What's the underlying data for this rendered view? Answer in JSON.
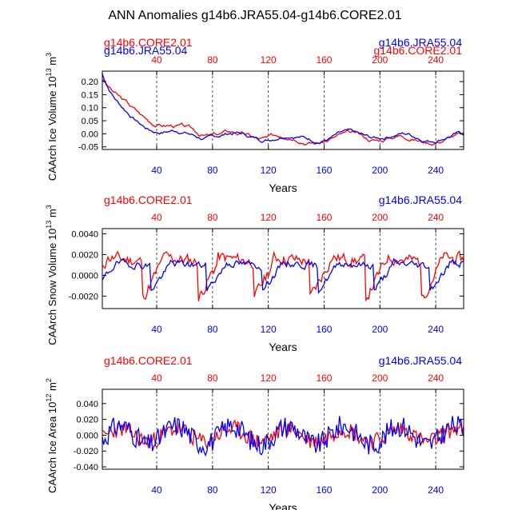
{
  "title": "ANN Anomalies g14b6.JRA55.04-g14b6.CORE2.01",
  "colors": {
    "core": "#ff0000",
    "jra": "#0000ff",
    "axis": "#000000",
    "grid": "#000000"
  },
  "chart_data": [
    {
      "type": "line",
      "panel": "ice-volume",
      "ylabel_main": "CAArch Ice Volume 10",
      "ylabel_exp": "13",
      "ylabel_unit": " m",
      "ylabel_unit_exp": "3",
      "xlabel": "Years",
      "legend_left": "g14b6.CORE2.01",
      "legend_right": "g14b6.JRA55.04",
      "legend_left_overprint": "g14b6.JRA55.04",
      "legend_right_overprint": "g14b6.CORE2.01",
      "xlim": [
        1,
        260
      ],
      "ylim": [
        -0.06,
        0.24
      ],
      "xticks": [
        40,
        80,
        120,
        160,
        200,
        240
      ],
      "xtick_labels": [
        "40",
        "80",
        "120",
        "160",
        "200",
        "240"
      ],
      "yticks": [
        0.2,
        0.15,
        0.1,
        0.05,
        0.0,
        -0.05
      ],
      "ytick_labels": [
        "0.20",
        "0.15",
        "0.10",
        "0.05",
        "0.00",
        "-0.05"
      ],
      "grid_x": true,
      "series": [
        {
          "name": "g14b6.CORE2.01",
          "color": "#ff0000",
          "kind": "ice",
          "amp": 0.012,
          "start": 0.21,
          "mean": -0.015,
          "decay": 30,
          "seed": 3
        },
        {
          "name": "g14b6.JRA55.04",
          "color": "#0000ff",
          "kind": "ice",
          "amp": 0.01,
          "start": 0.23,
          "mean": -0.01,
          "decay": 18,
          "seed": 7
        }
      ]
    },
    {
      "type": "line",
      "panel": "snow-volume",
      "ylabel_main": "CAArch Snow Volume 10",
      "ylabel_exp": "13",
      "ylabel_unit": " m",
      "ylabel_unit_exp": "3",
      "xlabel": "Years",
      "legend_left": "g14b6.CORE2.01",
      "legend_right": "g14b6.JRA55.04",
      "xlim": [
        1,
        260
      ],
      "ylim": [
        -0.0032,
        0.0045
      ],
      "xticks": [
        40,
        80,
        120,
        160,
        200,
        240
      ],
      "xtick_labels": [
        "40",
        "80",
        "120",
        "160",
        "200",
        "240"
      ],
      "yticks": [
        0.004,
        0.002,
        0.0,
        -0.002
      ],
      "ytick_labels": [
        "0.0040",
        "0.0020",
        "0.0000",
        "-0.0020"
      ],
      "grid_x": true,
      "series": [
        {
          "name": "g14b6.CORE2.01",
          "color": "#ff0000",
          "kind": "cycle",
          "amp": 0.0026,
          "period": 40,
          "phase": 0.25,
          "noise": 0.0005,
          "seed": 11
        },
        {
          "name": "g14b6.JRA55.04",
          "color": "#0000ff",
          "kind": "cycle",
          "amp": 0.0018,
          "period": 40,
          "phase": 0.12,
          "noise": 0.0003,
          "seed": 19
        }
      ]
    },
    {
      "type": "line",
      "panel": "ice-area",
      "ylabel_main": "CAArch Ice Area 10",
      "ylabel_exp": "12",
      "ylabel_unit": " m",
      "ylabel_unit_exp": "2",
      "xlabel": "Years",
      "legend_left": "g14b6.CORE2.01",
      "legend_right": "g14b6.JRA55.04",
      "xlim": [
        1,
        260
      ],
      "ylim": [
        -0.043,
        0.058
      ],
      "xticks": [
        40,
        80,
        120,
        160,
        200,
        240
      ],
      "xtick_labels": [
        "40",
        "80",
        "120",
        "160",
        "200",
        "240"
      ],
      "yticks": [
        0.04,
        0.02,
        0.0,
        -0.02,
        -0.04
      ],
      "ytick_labels": [
        "0.040",
        "0.020",
        "0.000",
        "-0.020",
        "-0.040"
      ],
      "grid_x": true,
      "series": [
        {
          "name": "g14b6.CORE2.01",
          "color": "#ff0000",
          "kind": "area",
          "amp": 0.016,
          "period": 40,
          "noise": 0.011,
          "seed": 23
        },
        {
          "name": "g14b6.JRA55.04",
          "color": "#0000ff",
          "kind": "area",
          "amp": 0.024,
          "period": 40,
          "noise": 0.014,
          "seed": 31
        }
      ]
    }
  ]
}
